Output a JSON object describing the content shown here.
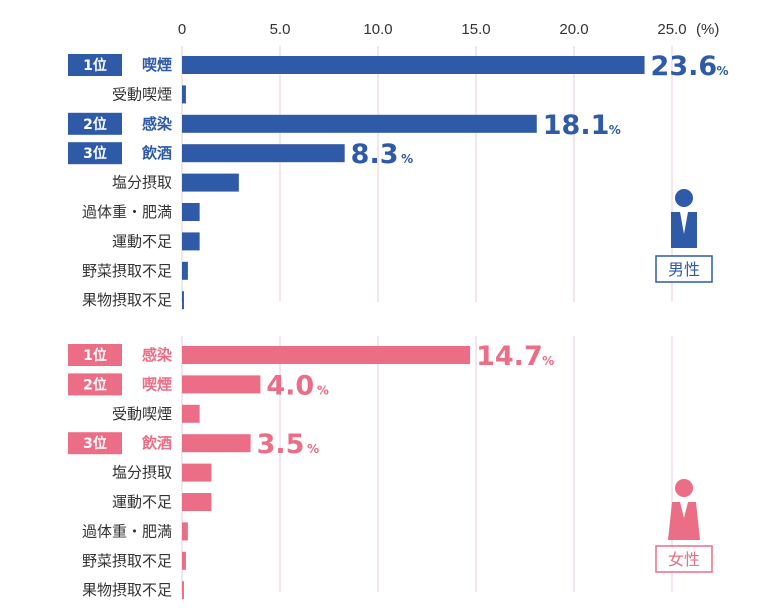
{
  "colors": {
    "male": "#2e5aa8",
    "female": "#ec6d86",
    "grid": "#e6cfe0",
    "text": "#333333"
  },
  "chart_data": {
    "type": "bar",
    "orientation": "horizontal",
    "x_ticks": [
      "0",
      "5.0",
      "10.0",
      "15.0",
      "20.0",
      "25.0"
    ],
    "x_unit": "(%)",
    "xlim": [
      0,
      25
    ],
    "grid": true,
    "panels": [
      {
        "key": "male",
        "gender_label": "男性",
        "categories": [
          {
            "label": "喫煙",
            "value": 23.6,
            "rank": "1位",
            "value_label": "23.6",
            "unit": "%"
          },
          {
            "label": "受動喫煙",
            "value": 0.2
          },
          {
            "label": "感染",
            "value": 18.1,
            "rank": "2位",
            "value_label": "18.1",
            "unit": "%"
          },
          {
            "label": "飲酒",
            "value": 8.3,
            "rank": "3位",
            "value_label": "8.3",
            "unit": "%"
          },
          {
            "label": "塩分摂取",
            "value": 2.9
          },
          {
            "label": "過体重・肥満",
            "value": 0.9
          },
          {
            "label": "運動不足",
            "value": 0.9
          },
          {
            "label": "野菜摂取不足",
            "value": 0.3
          },
          {
            "label": "果物摂取不足",
            "value": 0.1
          }
        ]
      },
      {
        "key": "female",
        "gender_label": "女性",
        "categories": [
          {
            "label": "感染",
            "value": 14.7,
            "rank": "1位",
            "value_label": "14.7",
            "unit": "%"
          },
          {
            "label": "喫煙",
            "value": 4.0,
            "rank": "2位",
            "value_label": "4.0",
            "unit": "%"
          },
          {
            "label": "受動喫煙",
            "value": 0.9
          },
          {
            "label": "飲酒",
            "value": 3.5,
            "rank": "3位",
            "value_label": "3.5",
            "unit": "%"
          },
          {
            "label": "塩分摂取",
            "value": 1.5
          },
          {
            "label": "運動不足",
            "value": 1.5
          },
          {
            "label": "過体重・肥満",
            "value": 0.3
          },
          {
            "label": "野菜摂取不足",
            "value": 0.2
          },
          {
            "label": "果物摂取不足",
            "value": 0.1
          }
        ]
      }
    ]
  }
}
